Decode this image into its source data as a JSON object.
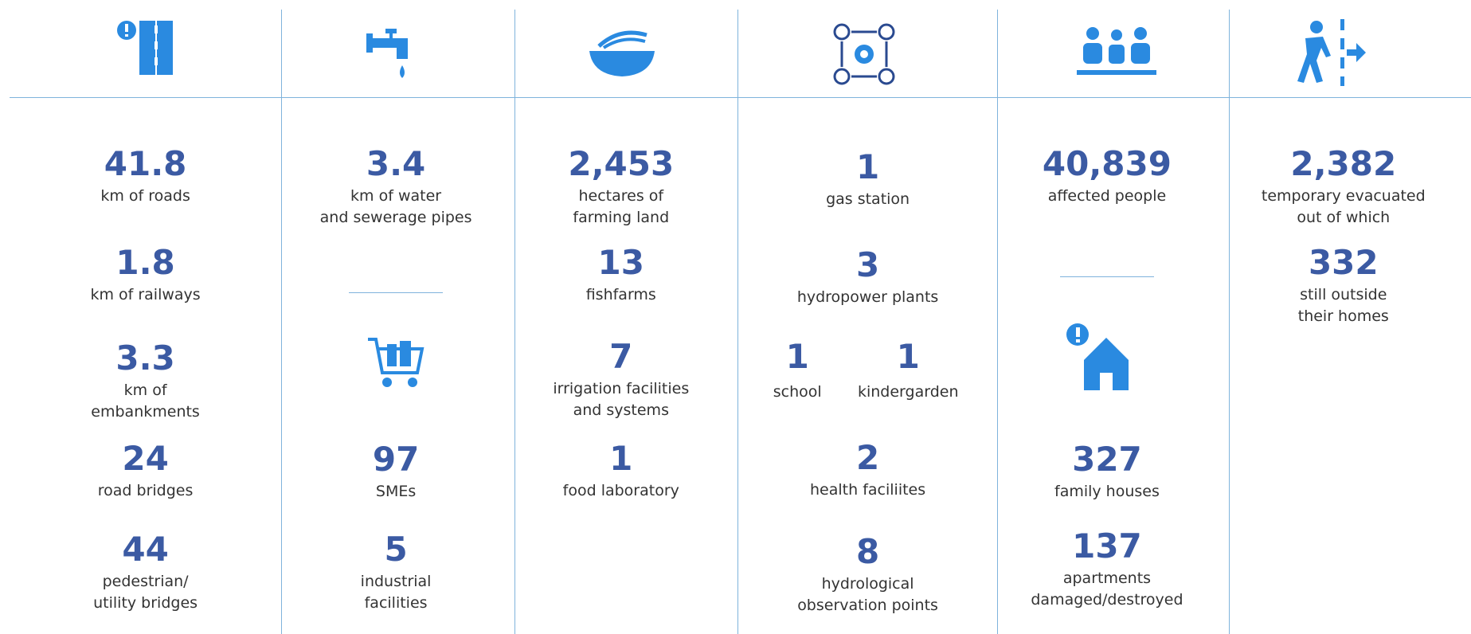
{
  "columns": [
    {
      "items": [
        {
          "value": "41.8",
          "label": [
            "km of roads"
          ]
        },
        {
          "value": "1.8",
          "label": [
            "km of railways"
          ]
        },
        {
          "value": "3.3",
          "label": [
            "km of",
            "embankments"
          ]
        },
        {
          "value": "24",
          "label": [
            "road bridges"
          ]
        },
        {
          "value": "44",
          "label": [
            "pedestrian/",
            "utility bridges"
          ]
        }
      ]
    },
    {
      "items": [
        {
          "value": "3.4",
          "label": [
            "km of water",
            "and sewerage pipes"
          ]
        },
        {
          "value": "97",
          "label": [
            "SMEs"
          ]
        },
        {
          "value": "5",
          "label": [
            "industrial",
            "facilities"
          ]
        }
      ]
    },
    {
      "items": [
        {
          "value": "2,453",
          "label": [
            "hectares of",
            "farming land"
          ]
        },
        {
          "value": "13",
          "label": [
            "fishfarms"
          ]
        },
        {
          "value": "7",
          "label": [
            "irrigation facilities",
            "and systems"
          ]
        },
        {
          "value": "1",
          "label": [
            "food laboratory"
          ]
        }
      ]
    },
    {
      "items": [
        {
          "value": "1",
          "label": [
            "gas station"
          ]
        },
        {
          "value": "3",
          "label": [
            "hydropower plants"
          ]
        },
        {
          "value": "1",
          "label": [
            "school"
          ]
        },
        {
          "value": "1",
          "label": [
            "kindergarden"
          ]
        },
        {
          "value": "2",
          "label": [
            "health faciliites"
          ]
        },
        {
          "value": "8",
          "label": [
            "hydrological",
            "observation points"
          ]
        }
      ]
    },
    {
      "items": [
        {
          "value": "40,839",
          "label": [
            "affected people"
          ]
        },
        {
          "value": "327",
          "label": [
            "family houses"
          ]
        },
        {
          "value": "137",
          "label": [
            "apartments",
            "damaged/destroyed"
          ]
        }
      ]
    },
    {
      "items": [
        {
          "value": "2,382",
          "label": [
            "temporary evacuated",
            "out of which"
          ]
        },
        {
          "value": "332",
          "label": [
            "still outside",
            "their homes"
          ]
        }
      ]
    }
  ]
}
